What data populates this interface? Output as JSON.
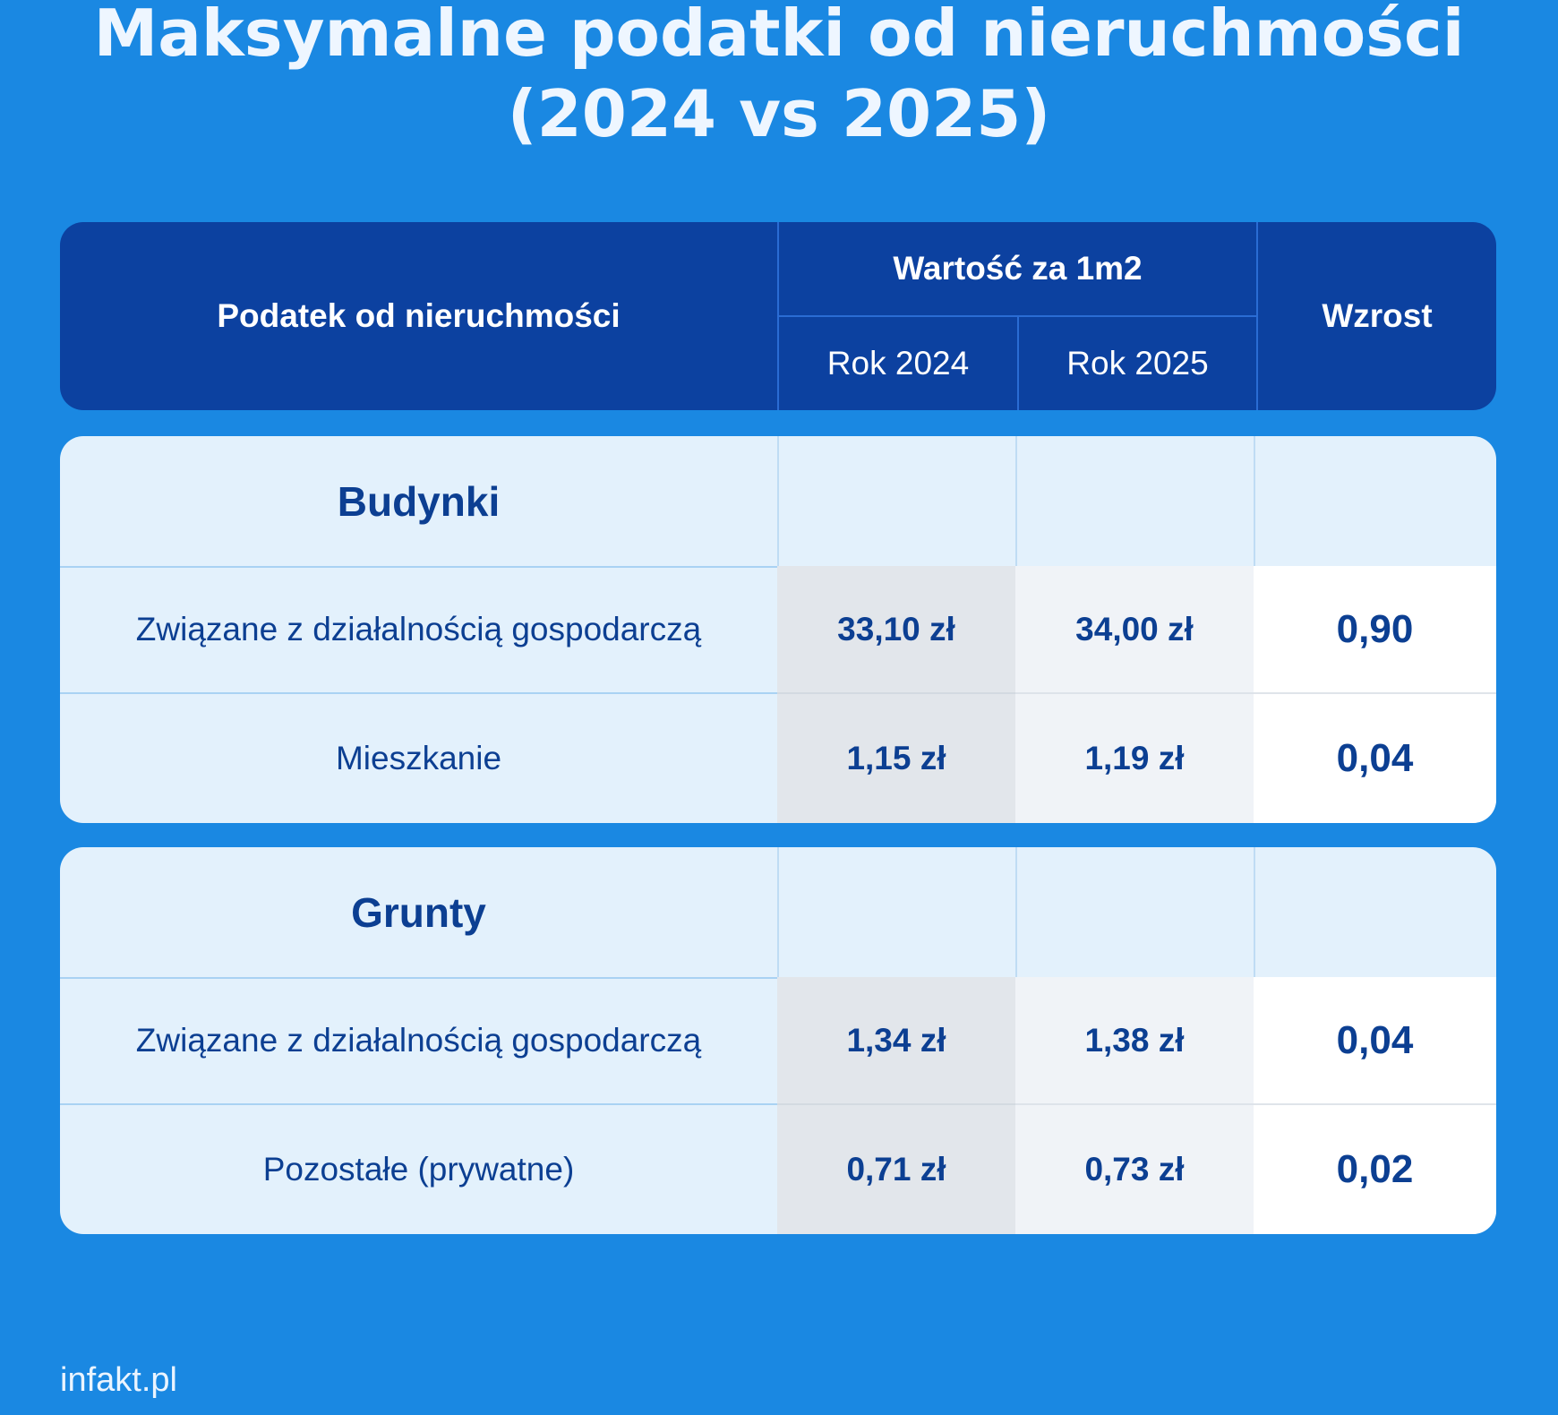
{
  "title": {
    "line1": "Maksymalne podatki od nieruchmości",
    "line2": "(2024 vs 2025)"
  },
  "header": {
    "name": "Podatek od nieruchmości",
    "group": "Wartość za 1m2",
    "year1": "Rok 2024",
    "year2": "Rok 2025",
    "increase": "Wzrost"
  },
  "sections": [
    {
      "title": "Budynki",
      "rows": [
        {
          "name": "Związane z działalnością gospodarczą",
          "y2024": "33,10 zł",
          "y2025": "34,00 zł",
          "increase": "0,90"
        },
        {
          "name": "Mieszkanie",
          "y2024": "1,15 zł",
          "y2025": "1,19 zł",
          "increase": "0,04"
        }
      ]
    },
    {
      "title": "Grunty",
      "rows": [
        {
          "name": "Związane z działalnością gospodarczą",
          "y2024": "1,34 zł",
          "y2025": "1,38 zł",
          "increase": "0,04"
        },
        {
          "name": "Pozostałe (prywatne)",
          "y2024": "0,71 zł",
          "y2025": "0,73 zł",
          "increase": "0,02"
        }
      ]
    }
  ],
  "footer": "infakt.pl",
  "colors": {
    "background": "#1a88e2",
    "header": "#0c41a0",
    "text_dark": "#0c3f92"
  }
}
